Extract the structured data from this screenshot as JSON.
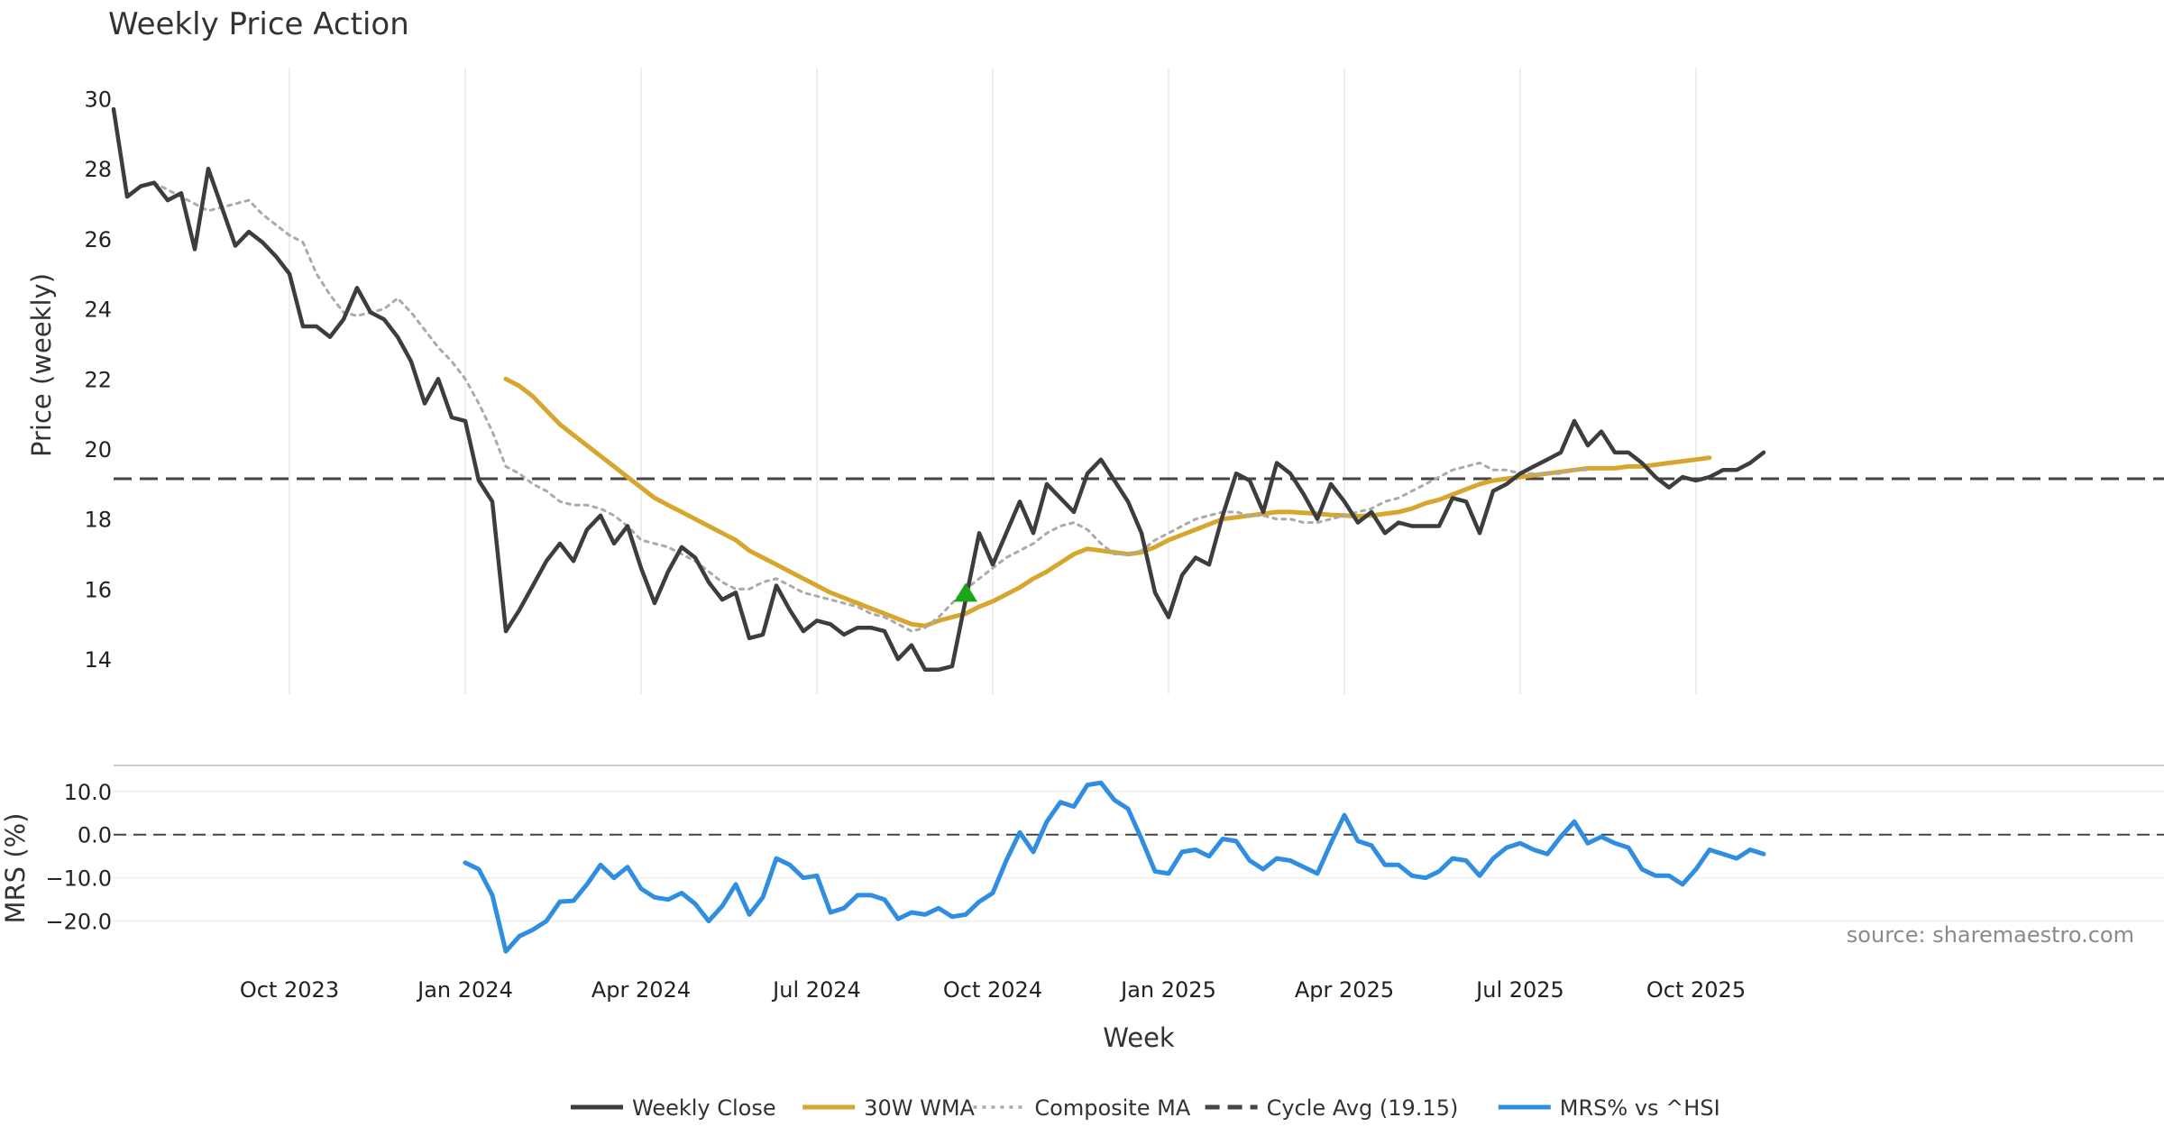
{
  "chart_data": [
    {
      "type": "line",
      "panel": "price",
      "title": "Weekly Price Action",
      "xlabel": "",
      "ylabel": "Price (weekly)",
      "ylim": [
        13.0,
        30.5
      ],
      "yticks": [
        14,
        16,
        18,
        20,
        22,
        24,
        26,
        28,
        30
      ],
      "xaxis": {
        "start": "2023-07-03",
        "interval_days": 7,
        "weeks": 130
      },
      "reference_lines": [
        {
          "name": "Cycle Avg (19.15)",
          "y": 19.15,
          "color": "#444444",
          "style": "dashed"
        }
      ],
      "markers": [
        {
          "type": "triangle-up",
          "color": "#1aa51a",
          "x_week": 63,
          "y": 15.9
        }
      ],
      "series": [
        {
          "name": "Weekly Close",
          "color": "#3d3d3d",
          "style": "solid",
          "start_week": 0,
          "values": [
            29.7,
            27.2,
            27.5,
            27.6,
            27.1,
            27.3,
            25.7,
            28.0,
            26.9,
            25.8,
            26.2,
            25.9,
            25.5,
            25.0,
            23.5,
            23.5,
            23.2,
            23.7,
            24.6,
            23.9,
            23.7,
            23.2,
            22.5,
            21.3,
            22.0,
            20.9,
            20.8,
            19.1,
            18.5,
            14.8,
            15.4,
            16.1,
            16.8,
            17.3,
            16.8,
            17.7,
            18.1,
            17.3,
            17.8,
            16.6,
            15.6,
            16.5,
            17.2,
            16.9,
            16.2,
            15.7,
            15.9,
            14.6,
            14.7,
            16.1,
            15.4,
            14.8,
            15.1,
            15.0,
            14.7,
            14.9,
            14.9,
            14.8,
            14.0,
            14.4,
            13.7,
            13.7,
            13.8,
            15.7,
            17.6,
            16.7,
            17.6,
            18.5,
            17.6,
            19.0,
            18.6,
            18.2,
            19.3,
            19.7,
            19.1,
            18.5,
            17.6,
            15.9,
            15.2,
            16.4,
            16.9,
            16.7,
            18.1,
            19.3,
            19.1,
            18.2,
            19.6,
            19.3,
            18.7,
            18.0,
            19.0,
            18.5,
            17.9,
            18.2,
            17.6,
            17.9,
            17.8,
            17.8,
            17.8,
            18.6,
            18.5,
            17.6,
            18.8,
            19.0,
            19.3,
            19.5,
            19.7,
            19.9,
            20.8,
            20.1,
            20.5,
            19.9,
            19.9,
            19.6,
            19.2,
            18.9,
            19.2,
            19.1,
            19.2,
            19.4,
            19.4,
            19.6,
            19.9
          ]
        },
        {
          "name": "30W WMA",
          "color": "#d6a62e",
          "style": "solid",
          "start_week": 29,
          "values": [
            22.0,
            21.8,
            21.5,
            21.1,
            20.7,
            20.4,
            20.1,
            19.8,
            19.5,
            19.2,
            18.9,
            18.6,
            18.4,
            18.2,
            18.0,
            17.8,
            17.6,
            17.4,
            17.1,
            16.9,
            16.7,
            16.5,
            16.3,
            16.1,
            15.9,
            15.75,
            15.6,
            15.45,
            15.3,
            15.15,
            15.0,
            14.95,
            15.1,
            15.2,
            15.3,
            15.5,
            15.65,
            15.85,
            16.05,
            16.3,
            16.5,
            16.75,
            17.0,
            17.15,
            17.1,
            17.05,
            17.0,
            17.05,
            17.2,
            17.4,
            17.55,
            17.7,
            17.85,
            18.0,
            18.05,
            18.1,
            18.15,
            18.2,
            18.2,
            18.18,
            18.15,
            18.12,
            18.1,
            18.08,
            18.1,
            18.15,
            18.2,
            18.3,
            18.45,
            18.55,
            18.7,
            18.85,
            19.0,
            19.1,
            19.15,
            19.2,
            19.25,
            19.3,
            19.35,
            19.4,
            19.45,
            19.45,
            19.45,
            19.5,
            19.5,
            19.55,
            19.6,
            19.65,
            19.7,
            19.75
          ]
        },
        {
          "name": "Composite MA",
          "color": "#aaaaaa",
          "style": "dotted",
          "start_week": 3,
          "values": [
            27.6,
            27.4,
            27.2,
            27.0,
            26.8,
            26.9,
            27.0,
            27.1,
            26.7,
            26.4,
            26.1,
            25.9,
            25.0,
            24.4,
            23.9,
            23.8,
            23.9,
            24.0,
            24.3,
            23.9,
            23.4,
            22.9,
            22.5,
            22.0,
            21.3,
            20.5,
            19.5,
            19.3,
            19.0,
            18.8,
            18.5,
            18.4,
            18.4,
            18.3,
            18.1,
            17.8,
            17.4,
            17.3,
            17.2,
            17.0,
            16.8,
            16.5,
            16.2,
            16.0,
            16.0,
            16.2,
            16.3,
            16.1,
            15.9,
            15.8,
            15.7,
            15.6,
            15.5,
            15.3,
            15.2,
            15.0,
            14.8,
            14.9,
            15.2,
            15.6,
            16.0,
            16.3,
            16.6,
            16.9,
            17.1,
            17.3,
            17.6,
            17.8,
            17.9,
            17.7,
            17.3,
            17.0,
            17.0,
            17.1,
            17.4,
            17.6,
            17.8,
            18.0,
            18.1,
            18.2,
            18.2,
            18.1,
            18.1,
            18.0,
            18.0,
            17.9,
            17.9,
            18.0,
            18.1,
            18.2,
            18.3,
            18.5,
            18.6,
            18.8,
            19.0,
            19.2,
            19.4,
            19.5,
            19.6,
            19.4,
            19.4,
            19.3,
            19.3,
            19.3,
            19.3,
            19.4,
            19.4
          ]
        }
      ]
    },
    {
      "type": "line",
      "panel": "mrs",
      "title": "",
      "xlabel": "Week",
      "ylabel": "MRS (%)",
      "ylim": [
        -28.0,
        16.0
      ],
      "yticks": [
        10.0,
        0.0,
        -10.0,
        -20.0
      ],
      "ytick_labels": [
        "10.0",
        "0.0",
        "−10.0",
        "−20.0"
      ],
      "xticks": [
        {
          "label": "Oct 2023",
          "week": 13
        },
        {
          "label": "Jan 2024",
          "week": 26
        },
        {
          "label": "Apr 2024",
          "week": 39
        },
        {
          "label": "Jul 2024",
          "week": 52
        },
        {
          "label": "Oct 2024",
          "week": 65
        },
        {
          "label": "Jan 2025",
          "week": 78
        },
        {
          "label": "Apr 2025",
          "week": 91
        },
        {
          "label": "Jul 2025",
          "week": 104
        },
        {
          "label": "Oct 2025",
          "week": 117
        }
      ],
      "reference_lines": [
        {
          "name": "zero",
          "y": 0.0,
          "color": "#444444",
          "style": "dashed"
        }
      ],
      "series": [
        {
          "name": "MRS% vs ^HSI",
          "color": "#2f8ee0",
          "style": "solid",
          "start_week": 26,
          "values": [
            -6.5,
            -8.0,
            -14.0,
            -27.0,
            -23.5,
            -22.0,
            -20.0,
            -15.5,
            -15.3,
            -11.5,
            -7.0,
            -10.0,
            -7.5,
            -12.5,
            -14.5,
            -15.0,
            -13.5,
            -16.0,
            -20.0,
            -16.5,
            -11.5,
            -18.5,
            -14.5,
            -5.5,
            -7.0,
            -10.0,
            -9.5,
            -18.0,
            -17.0,
            -14.0,
            -14.0,
            -15.0,
            -19.5,
            -18.0,
            -18.5,
            -17.0,
            -19.0,
            -18.5,
            -15.5,
            -13.5,
            -6.0,
            0.5,
            -4.0,
            3.0,
            7.5,
            6.5,
            11.5,
            12.0,
            8.0,
            6.0,
            -1.0,
            -8.5,
            -9.0,
            -4.0,
            -3.5,
            -5.0,
            -1.0,
            -1.5,
            -6.0,
            -8.0,
            -5.5,
            -6.0,
            -7.5,
            -9.0,
            -2.0,
            4.5,
            -1.5,
            -2.5,
            -7.0,
            -7.0,
            -9.5,
            -10.0,
            -8.5,
            -5.5,
            -6.0,
            -9.5,
            -5.5,
            -3.0,
            -2.0,
            -3.5,
            -4.5,
            -0.5,
            3.0,
            -2.0,
            -0.5,
            -2.0,
            -3.0,
            -8.0,
            -9.5,
            -9.5,
            -11.5,
            -8.0,
            -3.5,
            -4.5,
            -5.5,
            -3.5,
            -4.5
          ]
        }
      ]
    }
  ],
  "watermark": "source: sharemaestro.com",
  "legend": {
    "placement": "bottom-center",
    "items": [
      {
        "label": "Weekly Close",
        "color": "#3d3d3d",
        "style": "solid"
      },
      {
        "label": "30W WMA",
        "color": "#d6a62e",
        "style": "solid"
      },
      {
        "label": "Composite MA",
        "color": "#aaaaaa",
        "style": "dotted"
      },
      {
        "label": "Cycle Avg (19.15)",
        "color": "#444444",
        "style": "dashed"
      },
      {
        "label": "MRS% vs ^HSI",
        "color": "#2f8ee0",
        "style": "solid"
      }
    ]
  }
}
